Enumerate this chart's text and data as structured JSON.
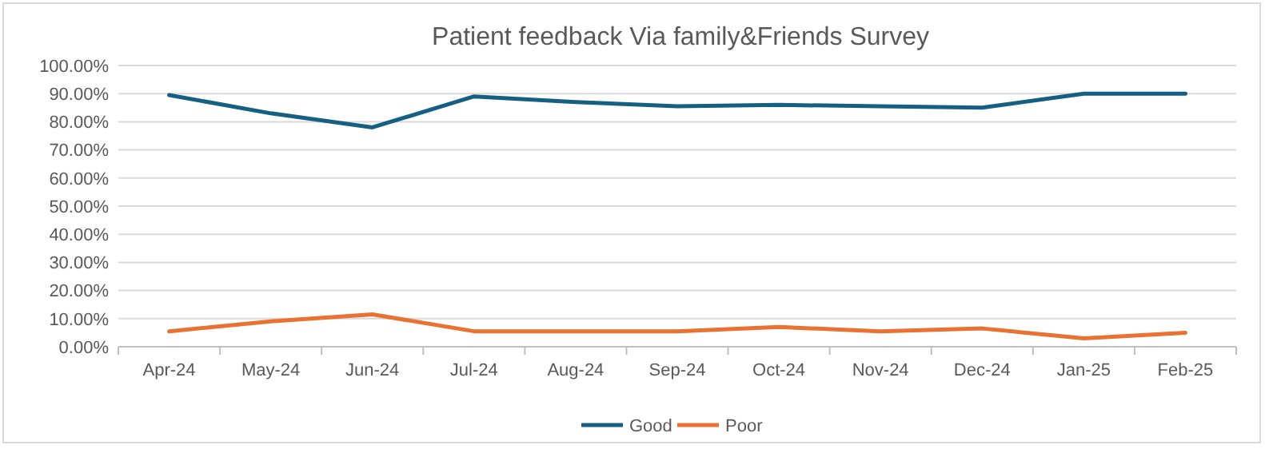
{
  "chart_data": {
    "type": "line",
    "title": "Patient feedback Via family&Friends Survey",
    "categories": [
      "Apr-24",
      "May-24",
      "Jun-24",
      "Jul-24",
      "Aug-24",
      "Sep-24",
      "Oct-24",
      "Nov-24",
      "Dec-24",
      "Jan-25",
      "Feb-25"
    ],
    "series": [
      {
        "name": "Good",
        "color": "#156082",
        "values": [
          89.5,
          83,
          78,
          89,
          87,
          85.5,
          86,
          85.5,
          85,
          90,
          90
        ]
      },
      {
        "name": "Poor",
        "color": "#e97132",
        "values": [
          5.5,
          9,
          11.5,
          5.5,
          5.5,
          5.5,
          7,
          5.5,
          6.5,
          3,
          5
        ]
      }
    ],
    "ylim": [
      0,
      100
    ],
    "yticks": [
      {
        "value": 0,
        "label": "0.00%"
      },
      {
        "value": 10,
        "label": "10.00%"
      },
      {
        "value": 20,
        "label": "20.00%"
      },
      {
        "value": 30,
        "label": "30.00%"
      },
      {
        "value": 40,
        "label": "40.00%"
      },
      {
        "value": 50,
        "label": "50.00%"
      },
      {
        "value": 60,
        "label": "60.00%"
      },
      {
        "value": 70,
        "label": "70.00%"
      },
      {
        "value": 80,
        "label": "80.00%"
      },
      {
        "value": 90,
        "label": "90.00%"
      },
      {
        "value": 100,
        "label": "100.00%"
      }
    ],
    "grid": "y",
    "legend": "bottom",
    "marker": "none",
    "line_style": "solid"
  }
}
